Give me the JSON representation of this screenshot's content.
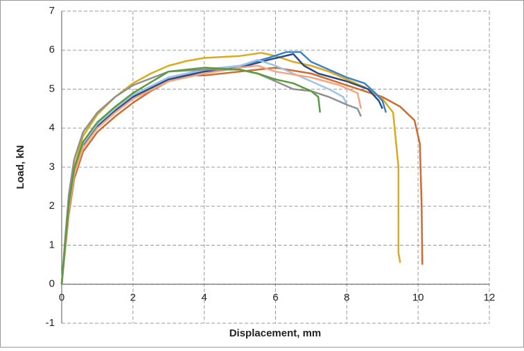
{
  "chart_data": {
    "type": "line",
    "xlabel": "Displacement, mm",
    "ylabel": "Load, kN",
    "xlim": [
      0,
      12
    ],
    "xticks": [
      0,
      2,
      4,
      6,
      8,
      10,
      12
    ],
    "ylim": [
      -1,
      7
    ],
    "yticks": [
      -1,
      0,
      1,
      2,
      3,
      4,
      5,
      6,
      7
    ],
    "grid": true,
    "series": [
      {
        "color": "#d2692c",
        "x": [
          0,
          0.1,
          0.2,
          0.35,
          0.6,
          1,
          1.5,
          2,
          2.5,
          3,
          3.5,
          4,
          5,
          6,
          7,
          8,
          9,
          9.5,
          9.9,
          10.05,
          10.1,
          10.12
        ],
        "values": [
          0,
          0.9,
          1.8,
          2.7,
          3.4,
          3.9,
          4.3,
          4.65,
          4.95,
          5.2,
          5.35,
          5.35,
          5.45,
          5.55,
          5.4,
          5.1,
          4.8,
          4.55,
          4.2,
          3.6,
          2,
          0.5
        ]
      },
      {
        "color": "#d9aa1e",
        "x": [
          0,
          0.1,
          0.2,
          0.35,
          0.6,
          1,
          1.5,
          2,
          2.5,
          3,
          3.5,
          4,
          5,
          5.6,
          6,
          6.5,
          7,
          7.5,
          8,
          8.5,
          9,
          9.3,
          9.45,
          9.45,
          9.5
        ],
        "values": [
          0,
          1.1,
          2.1,
          3,
          3.8,
          4.35,
          4.8,
          5.15,
          5.4,
          5.6,
          5.72,
          5.8,
          5.85,
          5.93,
          5.85,
          5.7,
          5.6,
          5.45,
          5.25,
          5.05,
          4.75,
          4.4,
          3,
          0.8,
          0.55
        ]
      },
      {
        "color": "#3b82c4",
        "x": [
          0,
          0.1,
          0.2,
          0.35,
          0.6,
          1,
          1.5,
          2,
          3,
          4,
          5,
          5.8,
          6.3,
          6.7,
          7,
          7.5,
          8,
          8.5,
          8.8,
          9,
          9.1
        ],
        "values": [
          0,
          1,
          2,
          2.9,
          3.6,
          4.1,
          4.5,
          4.85,
          5.3,
          5.5,
          5.6,
          5.8,
          5.95,
          5.95,
          5.7,
          5.5,
          5.3,
          5.15,
          4.9,
          4.7,
          4.4
        ]
      },
      {
        "color": "#2b4a86",
        "x": [
          0,
          0.1,
          0.2,
          0.35,
          0.6,
          1,
          1.5,
          2,
          3,
          4,
          5,
          5.8,
          6.5,
          6.8,
          7.2,
          8,
          8.6,
          8.9,
          9
        ],
        "values": [
          0,
          1,
          1.95,
          2.85,
          3.55,
          4.05,
          4.45,
          4.8,
          5.25,
          5.45,
          5.55,
          5.75,
          5.9,
          5.6,
          5.4,
          5.2,
          5,
          4.7,
          4.5
        ]
      },
      {
        "color": "#9dc3e6",
        "x": [
          0,
          0.1,
          0.2,
          0.35,
          0.6,
          1,
          1.5,
          2,
          3,
          4,
          5,
          5.5,
          6,
          6.5,
          7,
          7.5,
          7.9,
          8
        ],
        "values": [
          0,
          1,
          2,
          2.9,
          3.6,
          4.1,
          4.5,
          4.85,
          5.3,
          5.5,
          5.6,
          5.75,
          5.6,
          5.4,
          5.2,
          5,
          4.8,
          4.6
        ]
      },
      {
        "color": "#f4a582",
        "x": [
          0,
          0.1,
          0.2,
          0.35,
          0.6,
          1,
          1.5,
          2,
          3,
          4,
          5,
          5.5,
          6,
          7,
          7.8,
          8.3,
          8.4
        ],
        "values": [
          0,
          0.95,
          1.9,
          2.8,
          3.5,
          4,
          4.4,
          4.75,
          5.2,
          5.4,
          5.55,
          5.6,
          5.45,
          5.3,
          5.1,
          4.9,
          4.5
        ]
      },
      {
        "color": "#8f8f8f",
        "x": [
          0,
          0.1,
          0.2,
          0.35,
          0.6,
          1,
          1.5,
          2,
          3,
          4,
          5,
          5.5,
          6,
          6.5,
          7,
          7.5,
          8,
          8.3,
          8.4
        ],
        "values": [
          0,
          1.2,
          2.3,
          3.2,
          3.9,
          4.4,
          4.8,
          5.1,
          5.45,
          5.5,
          5.5,
          5.4,
          5.2,
          5,
          4.95,
          4.8,
          4.6,
          4.5,
          4.3
        ]
      },
      {
        "color": "#5b9a3e",
        "x": [
          0,
          0.1,
          0.2,
          0.35,
          0.6,
          1,
          1.5,
          2,
          3,
          4,
          5,
          5.5,
          6,
          6.5,
          7,
          7.2,
          7.25
        ],
        "values": [
          0,
          1.05,
          2.05,
          2.95,
          3.65,
          4.15,
          4.55,
          4.9,
          5.45,
          5.55,
          5.5,
          5.4,
          5.25,
          5.15,
          4.95,
          4.8,
          4.4
        ]
      }
    ]
  }
}
